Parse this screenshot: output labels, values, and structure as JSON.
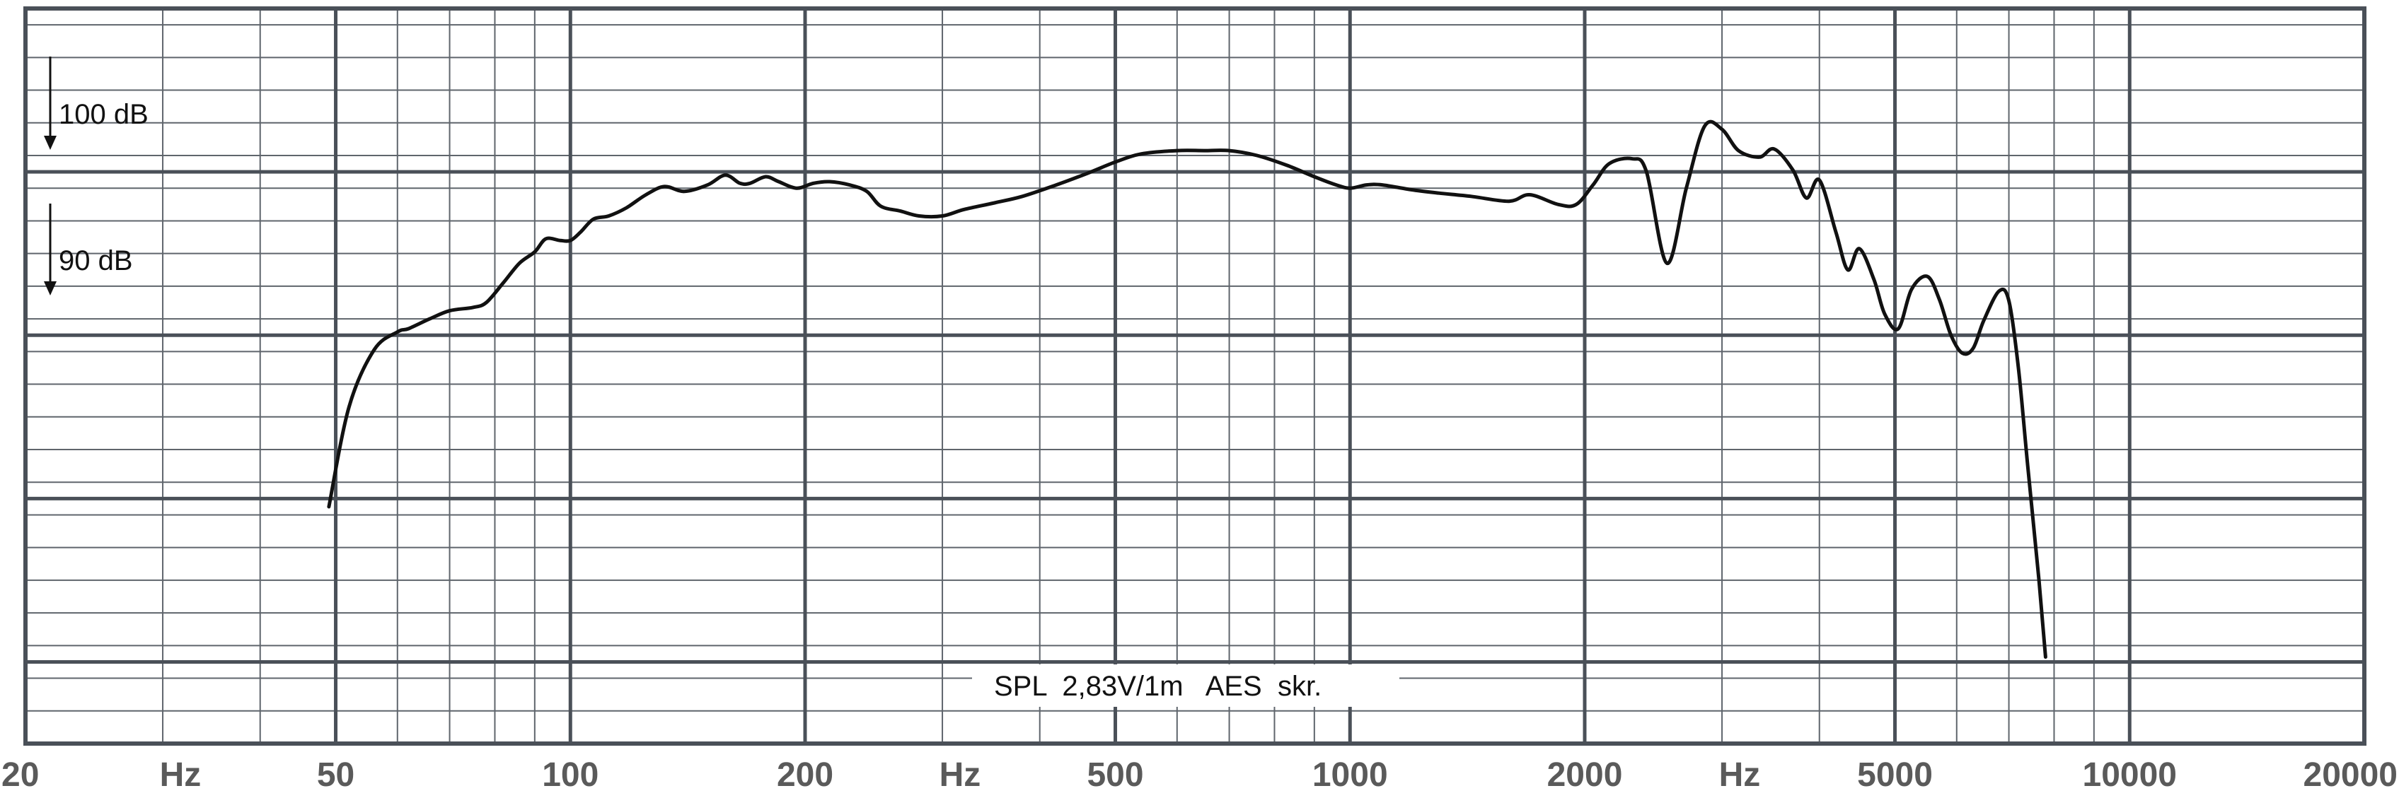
{
  "chart_data": {
    "type": "line",
    "title": "",
    "caption": "SPL  2,83V/1m   AES  skr.",
    "x_scale": "log",
    "xlim": [
      20,
      20000
    ],
    "ylim": [
      60,
      105
    ],
    "grid": true,
    "x_tick_labels": [
      {
        "value": 20,
        "label": "20"
      },
      {
        "value": 50,
        "label": "50"
      },
      {
        "value": 100,
        "label": "100"
      },
      {
        "value": 200,
        "label": "200"
      },
      {
        "value": 500,
        "label": "500"
      },
      {
        "value": 1000,
        "label": "1000"
      },
      {
        "value": 2000,
        "label": "2000"
      },
      {
        "value": 5000,
        "label": "5000"
      },
      {
        "value": 10000,
        "label": "10000"
      },
      {
        "value": 20000,
        "label": "20000"
      }
    ],
    "x_unit_labels": [
      {
        "value": 31.6,
        "label": "Hz"
      },
      {
        "value": 316,
        "label": "Hz"
      },
      {
        "value": 3160,
        "label": "Hz"
      }
    ],
    "y_reference_labels": [
      {
        "value": 100,
        "label": "100 dB"
      },
      {
        "value": 90,
        "label": "90 dB"
      }
    ],
    "series": [
      {
        "values": [
          [
            49,
            74.5
          ],
          [
            52,
            80.6
          ],
          [
            56,
            84.1
          ],
          [
            60,
            85.2
          ],
          [
            62,
            85.4
          ],
          [
            66,
            86.0
          ],
          [
            70,
            86.5
          ],
          [
            75,
            86.7
          ],
          [
            78,
            87.0
          ],
          [
            82,
            88.2
          ],
          [
            86,
            89.4
          ],
          [
            90,
            90.1
          ],
          [
            93,
            90.9
          ],
          [
            97,
            90.8
          ],
          [
            100,
            90.8
          ],
          [
            103,
            91.3
          ],
          [
            107,
            92.1
          ],
          [
            112,
            92.3
          ],
          [
            118,
            92.8
          ],
          [
            125,
            93.6
          ],
          [
            132,
            94.1
          ],
          [
            140,
            93.8
          ],
          [
            150,
            94.2
          ],
          [
            158,
            94.8
          ],
          [
            165,
            94.3
          ],
          [
            170,
            94.3
          ],
          [
            178,
            94.7
          ],
          [
            185,
            94.4
          ],
          [
            195,
            94.0
          ],
          [
            205,
            94.3
          ],
          [
            215,
            94.4
          ],
          [
            228,
            94.2
          ],
          [
            240,
            93.8
          ],
          [
            250,
            92.9
          ],
          [
            265,
            92.6
          ],
          [
            280,
            92.3
          ],
          [
            300,
            92.3
          ],
          [
            320,
            92.7
          ],
          [
            350,
            93.1
          ],
          [
            380,
            93.5
          ],
          [
            420,
            94.2
          ],
          [
            460,
            94.9
          ],
          [
            500,
            95.6
          ],
          [
            540,
            96.1
          ],
          [
            600,
            96.3
          ],
          [
            650,
            96.3
          ],
          [
            700,
            96.3
          ],
          [
            760,
            96.0
          ],
          [
            830,
            95.4
          ],
          [
            900,
            94.7
          ],
          [
            960,
            94.2
          ],
          [
            1000,
            94.0
          ],
          [
            1050,
            94.2
          ],
          [
            1100,
            94.2
          ],
          [
            1200,
            93.9
          ],
          [
            1300,
            93.7
          ],
          [
            1430,
            93.5
          ],
          [
            1600,
            93.2
          ],
          [
            1700,
            93.6
          ],
          [
            1850,
            93.0
          ],
          [
            1950,
            93.0
          ],
          [
            2050,
            94.2
          ],
          [
            2150,
            95.5
          ],
          [
            2300,
            95.8
          ],
          [
            2400,
            95.0
          ],
          [
            2550,
            89.4
          ],
          [
            2700,
            94.0
          ],
          [
            2850,
            97.8
          ],
          [
            3000,
            97.6
          ],
          [
            3150,
            96.3
          ],
          [
            3350,
            95.9
          ],
          [
            3500,
            96.4
          ],
          [
            3700,
            95.1
          ],
          [
            3850,
            93.4
          ],
          [
            4000,
            94.5
          ],
          [
            4200,
            91.3
          ],
          [
            4350,
            89.0
          ],
          [
            4500,
            90.3
          ],
          [
            4700,
            88.4
          ],
          [
            4850,
            86.3
          ],
          [
            5050,
            85.4
          ],
          [
            5250,
            87.8
          ],
          [
            5500,
            88.6
          ],
          [
            5700,
            87.2
          ],
          [
            5900,
            85.0
          ],
          [
            6100,
            83.9
          ],
          [
            6300,
            84.2
          ],
          [
            6500,
            85.9
          ],
          [
            6800,
            87.7
          ],
          [
            7000,
            87.1
          ],
          [
            7200,
            83.0
          ],
          [
            7400,
            77.0
          ],
          [
            7650,
            70.0
          ],
          [
            7800,
            65.3
          ]
        ]
      }
    ]
  }
}
